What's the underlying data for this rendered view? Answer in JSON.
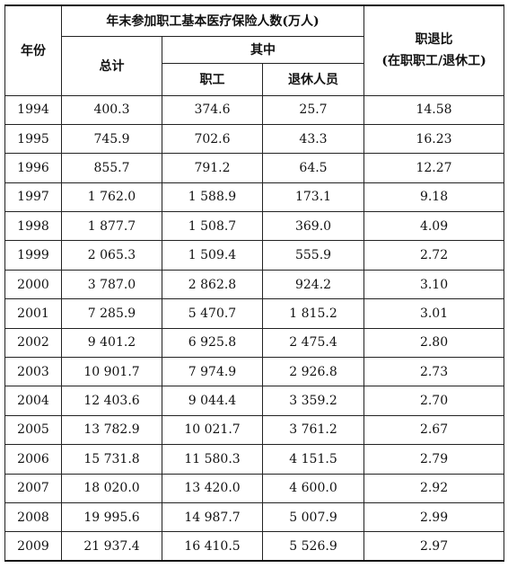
{
  "table": {
    "headers": {
      "year": "年份",
      "group": "年末参加职工基本医疗保险人数(万人)",
      "total": "总计",
      "among": "其中",
      "staff": "职工",
      "retired": "退休人员",
      "ratio": "职退比",
      "ratio_note": "(在职职工/退休工)"
    },
    "rows": [
      [
        "1994",
        "400.3",
        "374.6",
        "25.7",
        "14.58"
      ],
      [
        "1995",
        "745.9",
        "702.6",
        "43.3",
        "16.23"
      ],
      [
        "1996",
        "855.7",
        "791.2",
        "64.5",
        "12.27"
      ],
      [
        "1997",
        "1 762.0",
        "1 588.9",
        "173.1",
        "9.18"
      ],
      [
        "1998",
        "1 877.7",
        "1 508.7",
        "369.0",
        "4.09"
      ],
      [
        "1999",
        "2 065.3",
        "1 509.4",
        "555.9",
        "2.72"
      ],
      [
        "2000",
        "3 787.0",
        "2 862.8",
        "924.2",
        "3.10"
      ],
      [
        "2001",
        "7 285.9",
        "5 470.7",
        "1 815.2",
        "3.01"
      ],
      [
        "2002",
        "9 401.2",
        "6 925.8",
        "2 475.4",
        "2.80"
      ],
      [
        "2003",
        "10 901.7",
        "7 974.9",
        "2 926.8",
        "2.73"
      ],
      [
        "2004",
        "12 403.6",
        "9 044.4",
        "3 359.2",
        "2.70"
      ],
      [
        "2005",
        "13 782.9",
        "10 021.7",
        "3 761.2",
        "2.67"
      ],
      [
        "2006",
        "15 731.8",
        "11 580.3",
        "4 151.5",
        "2.79"
      ],
      [
        "2007",
        "18 020.0",
        "13 420.0",
        "4 600.0",
        "2.92"
      ],
      [
        "2008",
        "19 995.6",
        "14 987.7",
        "5 007.9",
        "2.99"
      ],
      [
        "2009",
        "21 937.4",
        "16 410.5",
        "5 526.9",
        "2.97"
      ]
    ]
  }
}
